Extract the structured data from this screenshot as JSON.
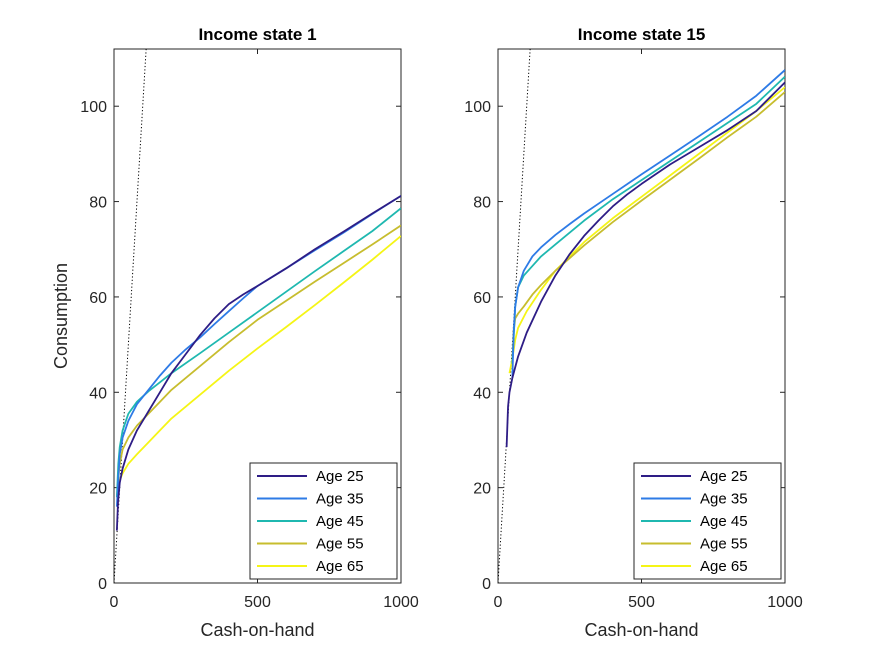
{
  "figure": {
    "ylabel": "Consumption"
  },
  "chart_data": [
    {
      "type": "line",
      "title": "Income state 1",
      "xlabel": "Cash-on-hand",
      "ylabel": "Consumption",
      "xlim": [
        0,
        1000
      ],
      "ylim": [
        0,
        112
      ],
      "xticks": [
        "0",
        "500",
        "1000"
      ],
      "yticks": [
        "0",
        "20",
        "40",
        "60",
        "80",
        "100"
      ],
      "grid": false,
      "legend_position": "bottom-right",
      "reference_line": {
        "style": "dotted",
        "color": "#000000",
        "points": [
          [
            0,
            0
          ],
          [
            112,
            112
          ]
        ]
      },
      "series": [
        {
          "name": "Age 25",
          "color": "#2E1D86",
          "points": [
            [
              10,
              11
            ],
            [
              14,
              17
            ],
            [
              20,
              21
            ],
            [
              30,
              24
            ],
            [
              50,
              28
            ],
            [
              80,
              32
            ],
            [
              120,
              36
            ],
            [
              160,
              40
            ],
            [
              200,
              44
            ],
            [
              250,
              48
            ],
            [
              300,
              52
            ],
            [
              350,
              55.5
            ],
            [
              400,
              58.5
            ],
            [
              450,
              60.5
            ],
            [
              500,
              62.3
            ],
            [
              600,
              66
            ],
            [
              700,
              70
            ],
            [
              800,
              73.7
            ],
            [
              900,
              77.5
            ],
            [
              1000,
              81.2
            ]
          ]
        },
        {
          "name": "Age 35",
          "color": "#2E7BE6",
          "points": [
            [
              10,
              16
            ],
            [
              15,
              22
            ],
            [
              20,
              27
            ],
            [
              30,
              30.5
            ],
            [
              50,
              34
            ],
            [
              80,
              37.5
            ],
            [
              120,
              40.5
            ],
            [
              160,
              43.5
            ],
            [
              200,
              46.2
            ],
            [
              250,
              49
            ],
            [
              300,
              51.5
            ],
            [
              350,
              54.3
            ],
            [
              400,
              57
            ],
            [
              450,
              59.7
            ],
            [
              500,
              62.3
            ],
            [
              600,
              66
            ],
            [
              700,
              69.8
            ],
            [
              800,
              73.5
            ],
            [
              900,
              77.4
            ],
            [
              1000,
              81.2
            ]
          ]
        },
        {
          "name": "Age 45",
          "color": "#1FB8B0",
          "points": [
            [
              10,
              18
            ],
            [
              15,
              25
            ],
            [
              20,
              28.5
            ],
            [
              30,
              32
            ],
            [
              50,
              35.5
            ],
            [
              80,
              38
            ],
            [
              120,
              40.2
            ],
            [
              160,
              42.1
            ],
            [
              200,
              44
            ],
            [
              300,
              48.2
            ],
            [
              400,
              52.5
            ],
            [
              500,
              56.8
            ],
            [
              600,
              61.1
            ],
            [
              700,
              65.4
            ],
            [
              800,
              69.6
            ],
            [
              900,
              73.8
            ],
            [
              1000,
              78.6
            ]
          ]
        },
        {
          "name": "Age 55",
          "color": "#C7BD2E",
          "points": [
            [
              10,
              18
            ],
            [
              15,
              22
            ],
            [
              20,
              25
            ],
            [
              30,
              28
            ],
            [
              50,
              30.5
            ],
            [
              80,
              33
            ],
            [
              120,
              35.5
            ],
            [
              160,
              38
            ],
            [
              200,
              40.5
            ],
            [
              300,
              45.5
            ],
            [
              400,
              50.5
            ],
            [
              500,
              55.2
            ],
            [
              600,
              59.2
            ],
            [
              700,
              63.2
            ],
            [
              800,
              67.1
            ],
            [
              900,
              71
            ],
            [
              1000,
              75
            ]
          ]
        },
        {
          "name": "Age 65",
          "color": "#F5F516",
          "points": [
            [
              10,
              18
            ],
            [
              15,
              20
            ],
            [
              20,
              21.5
            ],
            [
              30,
              23
            ],
            [
              50,
              25
            ],
            [
              80,
              27
            ],
            [
              120,
              29.5
            ],
            [
              160,
              32
            ],
            [
              200,
              34.5
            ],
            [
              300,
              39.5
            ],
            [
              400,
              44.5
            ],
            [
              500,
              49.2
            ],
            [
              600,
              53.7
            ],
            [
              700,
              58.3
            ],
            [
              800,
              63
            ],
            [
              900,
              67.8
            ],
            [
              1000,
              72.8
            ]
          ]
        }
      ]
    },
    {
      "type": "line",
      "title": "Income state 15",
      "xlabel": "Cash-on-hand",
      "ylabel": "",
      "xlim": [
        0,
        1000
      ],
      "ylim": [
        0,
        112
      ],
      "xticks": [
        "0",
        "500",
        "1000"
      ],
      "yticks": [
        "0",
        "20",
        "40",
        "60",
        "80",
        "100"
      ],
      "grid": false,
      "legend_position": "bottom-right",
      "reference_line": {
        "style": "dotted",
        "color": "#000000",
        "points": [
          [
            0,
            0
          ],
          [
            112,
            112
          ]
        ]
      },
      "series": [
        {
          "name": "Age 25",
          "color": "#2E1D86",
          "points": [
            [
              30,
              28.5
            ],
            [
              35,
              37
            ],
            [
              40,
              40
            ],
            [
              50,
              43
            ],
            [
              70,
              47.5
            ],
            [
              100,
              52.5
            ],
            [
              150,
              59
            ],
            [
              200,
              64.5
            ],
            [
              250,
              69
            ],
            [
              300,
              72.8
            ],
            [
              350,
              76
            ],
            [
              400,
              79
            ],
            [
              450,
              81.5
            ],
            [
              500,
              83.7
            ],
            [
              600,
              87.8
            ],
            [
              700,
              91.4
            ],
            [
              800,
              95
            ],
            [
              900,
              99
            ],
            [
              1000,
              105
            ]
          ]
        },
        {
          "name": "Age 35",
          "color": "#2E7BE6",
          "points": [
            [
              50,
              43
            ],
            [
              55,
              53
            ],
            [
              60,
              58
            ],
            [
              70,
              62
            ],
            [
              90,
              65.5
            ],
            [
              120,
              68.5
            ],
            [
              150,
              70.4
            ],
            [
              200,
              73
            ],
            [
              250,
              75.3
            ],
            [
              300,
              77.5
            ],
            [
              400,
              81.6
            ],
            [
              500,
              85.7
            ],
            [
              600,
              89.7
            ],
            [
              700,
              93.7
            ],
            [
              800,
              97.8
            ],
            [
              900,
              102.2
            ],
            [
              1000,
              107.6
            ]
          ]
        },
        {
          "name": "Age 45",
          "color": "#1FB8B0",
          "points": [
            [
              50,
              46
            ],
            [
              55,
              52
            ],
            [
              60,
              58
            ],
            [
              70,
              62
            ],
            [
              90,
              64.5
            ],
            [
              120,
              66.5
            ],
            [
              150,
              68.5
            ],
            [
              200,
              71
            ],
            [
              300,
              76
            ],
            [
              400,
              80.5
            ],
            [
              500,
              84.5
            ],
            [
              600,
              88.5
            ],
            [
              700,
              92.5
            ],
            [
              800,
              96.5
            ],
            [
              900,
              100.5
            ],
            [
              1000,
              106.2
            ]
          ]
        },
        {
          "name": "Age 55",
          "color": "#C7BD2E",
          "points": [
            [
              50,
              46
            ],
            [
              55,
              53
            ],
            [
              60,
              55.5
            ],
            [
              70,
              56.5
            ],
            [
              90,
              58
            ],
            [
              120,
              60.5
            ],
            [
              150,
              62.5
            ],
            [
              200,
              65.5
            ],
            [
              300,
              70.8
            ],
            [
              400,
              75.7
            ],
            [
              500,
              80.2
            ],
            [
              600,
              84.6
            ],
            [
              700,
              89
            ],
            [
              800,
              93.5
            ],
            [
              900,
              97.8
            ],
            [
              1000,
              103
            ]
          ]
        },
        {
          "name": "Age 65",
          "color": "#F5F516",
          "points": [
            [
              40,
              44
            ],
            [
              50,
              47
            ],
            [
              60,
              51
            ],
            [
              70,
              53.5
            ],
            [
              100,
              57
            ],
            [
              150,
              61.5
            ],
            [
              200,
              65.5
            ],
            [
              300,
              71.5
            ],
            [
              400,
              76.5
            ],
            [
              500,
              81
            ],
            [
              600,
              85.5
            ],
            [
              700,
              90
            ],
            [
              800,
              94.5
            ],
            [
              900,
              99
            ],
            [
              1000,
              104
            ]
          ]
        }
      ]
    }
  ]
}
